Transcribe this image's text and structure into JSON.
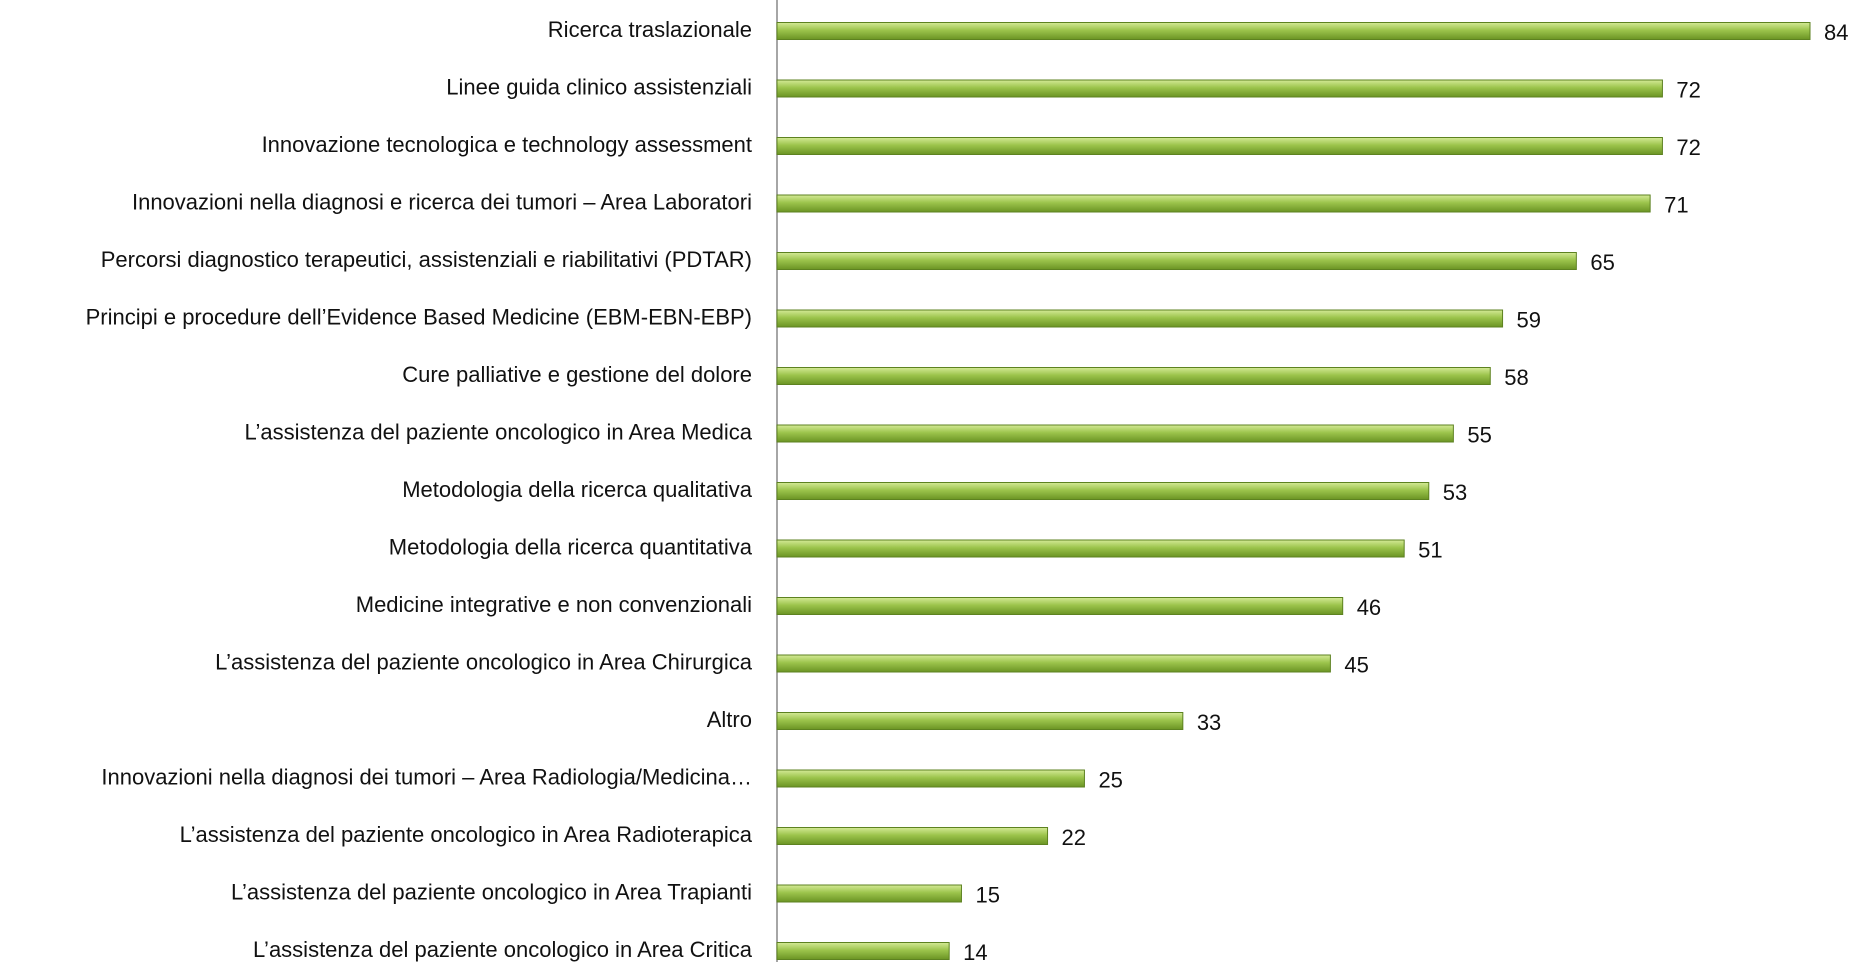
{
  "chart_data": {
    "type": "bar",
    "orientation": "horizontal",
    "categories": [
      "Ricerca traslazionale",
      "Linee guida clinico assistenziali",
      "Innovazione tecnologica e technology assessment",
      "Innovazioni nella diagnosi e ricerca dei tumori – Area Laboratori",
      "Percorsi diagnostico terapeutici, assistenziali e riabilitativi (PDTAR)",
      "Principi e procedure dell’Evidence Based Medicine (EBM-EBN-EBP)",
      "Cure palliative e gestione del dolore",
      "L’assistenza del paziente oncologico in Area Medica",
      "Metodologia della ricerca qualitativa",
      "Metodologia della ricerca quantitativa",
      "Medicine integrative e non convenzionali",
      "L’assistenza del paziente oncologico in Area Chirurgica",
      "Altro",
      "Innovazioni nella diagnosi dei tumori – Area Radiologia/Medicina…",
      "L’assistenza del paziente oncologico in Area Radioterapica",
      "L’assistenza del paziente oncologico in Area Trapianti",
      "L’assistenza del paziente oncologico in Area Critica"
    ],
    "values": [
      84,
      72,
      72,
      71,
      65,
      59,
      58,
      55,
      53,
      51,
      46,
      45,
      33,
      25,
      22,
      15,
      14
    ],
    "color": "#8db83c"
  }
}
